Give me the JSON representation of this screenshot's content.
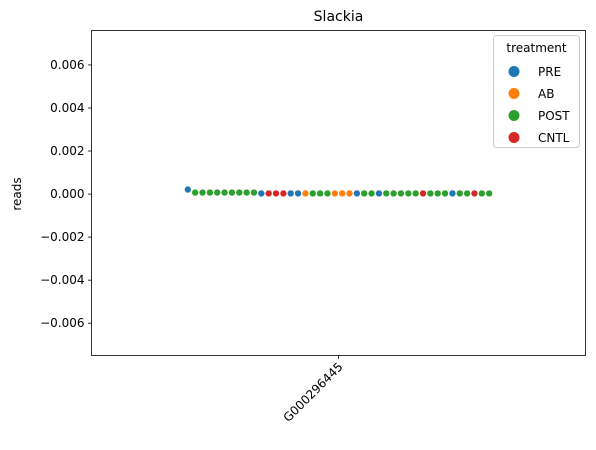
{
  "chart_data": {
    "type": "scatter",
    "title": "Slackia",
    "xlabel": "",
    "ylabel": "reads",
    "categories": [
      "G000296445"
    ],
    "ylim": [
      -0.0075,
      0.0076
    ],
    "yticks": [
      "−0.006",
      "−0.004",
      "−0.002",
      "0.000",
      "0.002",
      "0.004",
      "0.006"
    ],
    "ytick_values": [
      -0.006,
      -0.004,
      -0.002,
      0.0,
      0.002,
      0.004,
      0.006
    ],
    "x_tick_rotation": -45,
    "grid": false,
    "legend": {
      "title": "treatment",
      "placement": "top-right",
      "entries": [
        {
          "name": "PRE",
          "color": "#1f77b4"
        },
        {
          "name": "AB",
          "color": "#ff7f0e"
        },
        {
          "name": "POST",
          "color": "#2ca02c"
        },
        {
          "name": "CNTL",
          "color": "#d62728"
        }
      ]
    },
    "points": [
      {
        "group": "PRE",
        "y": 0.00021
      },
      {
        "group": "POST",
        "y": 7e-05
      },
      {
        "group": "POST",
        "y": 7e-05
      },
      {
        "group": "POST",
        "y": 7e-05
      },
      {
        "group": "POST",
        "y": 7e-05
      },
      {
        "group": "POST",
        "y": 7e-05
      },
      {
        "group": "POST",
        "y": 7e-05
      },
      {
        "group": "POST",
        "y": 7e-05
      },
      {
        "group": "POST",
        "y": 7e-05
      },
      {
        "group": "POST",
        "y": 7e-05
      },
      {
        "group": "PRE",
        "y": 3e-05
      },
      {
        "group": "CNTL",
        "y": 3e-05
      },
      {
        "group": "CNTL",
        "y": 3e-05
      },
      {
        "group": "CNTL",
        "y": 3e-05
      },
      {
        "group": "PRE",
        "y": 3e-05
      },
      {
        "group": "PRE",
        "y": 3e-05
      },
      {
        "group": "AB",
        "y": 3e-05
      },
      {
        "group": "POST",
        "y": 3e-05
      },
      {
        "group": "POST",
        "y": 3e-05
      },
      {
        "group": "POST",
        "y": 3e-05
      },
      {
        "group": "AB",
        "y": 3e-05
      },
      {
        "group": "AB",
        "y": 3e-05
      },
      {
        "group": "AB",
        "y": 3e-05
      },
      {
        "group": "PRE",
        "y": 3e-05
      },
      {
        "group": "POST",
        "y": 3e-05
      },
      {
        "group": "POST",
        "y": 3e-05
      },
      {
        "group": "PRE",
        "y": 3e-05
      },
      {
        "group": "POST",
        "y": 3e-05
      },
      {
        "group": "POST",
        "y": 3e-05
      },
      {
        "group": "POST",
        "y": 3e-05
      },
      {
        "group": "POST",
        "y": 3e-05
      },
      {
        "group": "POST",
        "y": 3e-05
      },
      {
        "group": "CNTL",
        "y": 3e-05
      },
      {
        "group": "POST",
        "y": 3e-05
      },
      {
        "group": "POST",
        "y": 3e-05
      },
      {
        "group": "POST",
        "y": 3e-05
      },
      {
        "group": "PRE",
        "y": 3e-05
      },
      {
        "group": "POST",
        "y": 3e-05
      },
      {
        "group": "POST",
        "y": 3e-05
      },
      {
        "group": "CNTL",
        "y": 3e-05
      },
      {
        "group": "POST",
        "y": 3e-05
      },
      {
        "group": "POST",
        "y": 3e-05
      }
    ]
  }
}
